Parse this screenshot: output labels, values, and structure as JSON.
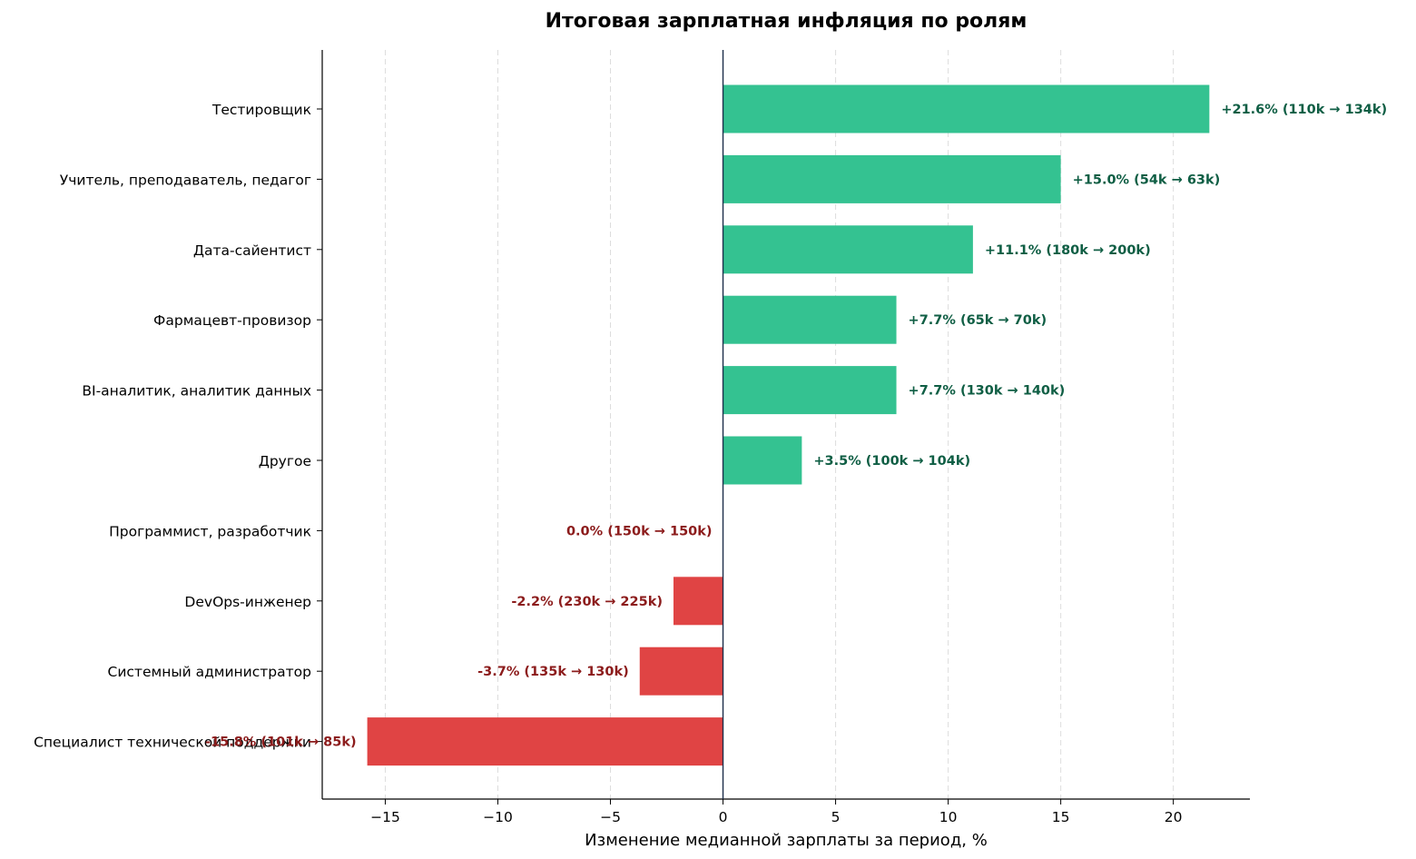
{
  "chart_data": {
    "type": "bar",
    "orientation": "horizontal",
    "title": "Итоговая зарплатная инфляция по ролям",
    "xlabel": "Изменение медианной зарплаты за период, %",
    "ylabel": "",
    "xlim": [
      -17.8,
      23.4
    ],
    "xticks": [
      -15,
      -10,
      -5,
      0,
      5,
      10,
      15,
      20
    ],
    "xtick_labels": [
      "−15",
      "−10",
      "−5",
      "0",
      "5",
      "10",
      "15",
      "20"
    ],
    "grid": "x-dashed",
    "colors": {
      "positive_bar": "#34c291",
      "negative_bar": "#e04444",
      "positive_text": "#0f5e44",
      "negative_text": "#8c1c1c",
      "zero_line": "#1c2e4a",
      "grid": "#dddddd"
    },
    "categories": [
      "Тестировщик",
      "Учитель, преподаватель, педагог",
      "Дата-сайентист",
      "Фармацевт-провизор",
      "BI-аналитик, аналитик данных",
      "Другое",
      "Программист, разработчик",
      "DevOps-инженер",
      "Системный администратор",
      "Специалист технической поддержки"
    ],
    "values": [
      21.6,
      15.0,
      11.1,
      7.7,
      7.7,
      3.5,
      0.0,
      -2.2,
      -3.7,
      -15.8
    ],
    "data_labels": [
      "+21.6%  (110k → 134k)",
      "+15.0%  (54k → 63k)",
      "+11.1%  (180k → 200k)",
      "+7.7%  (65k → 70k)",
      "+7.7%  (130k → 140k)",
      "+3.5%  (100k → 104k)",
      "0.0%  (150k → 150k)",
      "-2.2%  (230k → 225k)",
      "-3.7%  (135k → 130k)",
      "-15.8%  (101k → 85k)"
    ]
  }
}
